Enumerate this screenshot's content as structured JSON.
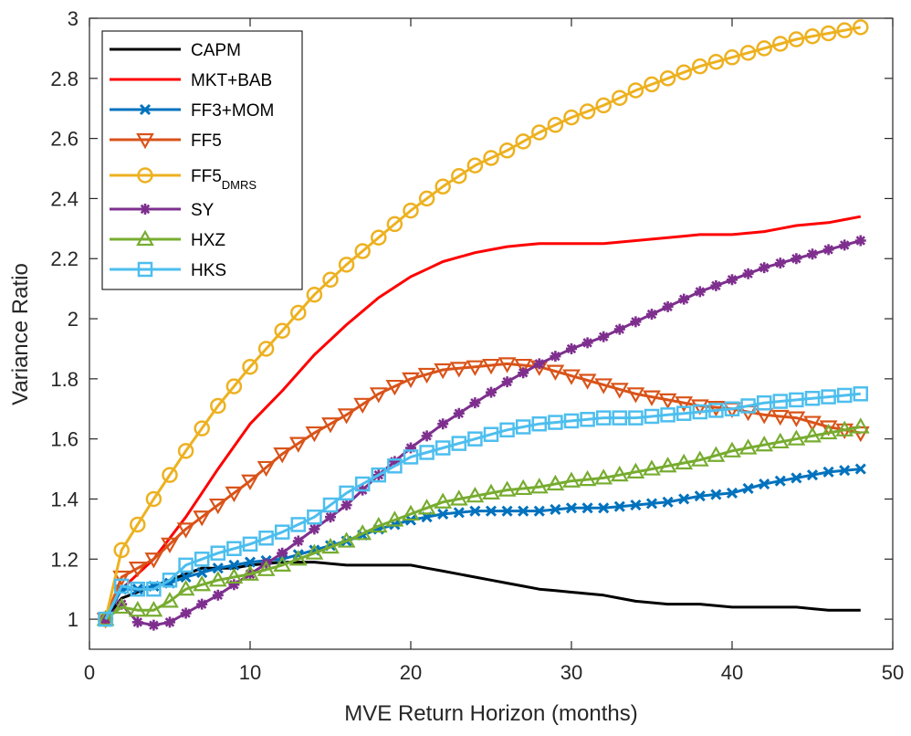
{
  "chart_data": {
    "type": "line",
    "xlabel": "MVE Return Horizon (months)",
    "ylabel": "Variance Ratio",
    "xlim": [
      0,
      50
    ],
    "ylim": [
      0.9,
      3.0
    ],
    "xticks": [
      0,
      10,
      20,
      30,
      40,
      50
    ],
    "yticks": [
      1,
      1.2,
      1.4,
      1.6,
      1.8,
      2,
      2.2,
      2.4,
      2.6,
      2.8,
      3
    ],
    "xtick_labels": [
      "0",
      "10",
      "20",
      "30",
      "40",
      "50"
    ],
    "ytick_labels": [
      "1",
      "1.2",
      "1.4",
      "1.6",
      "1.8",
      "2",
      "2.2",
      "2.4",
      "2.6",
      "2.8",
      "3"
    ],
    "grid": false,
    "legend_position": "top-left",
    "series": [
      {
        "name": "CAPM",
        "color": "#000000",
        "marker": "none",
        "points": [
          [
            1,
            1.0
          ],
          [
            2,
            1.07
          ],
          [
            3,
            1.09
          ],
          [
            4,
            1.11
          ],
          [
            5,
            1.13
          ],
          [
            6,
            1.15
          ],
          [
            7,
            1.17
          ],
          [
            8,
            1.17
          ],
          [
            9,
            1.17
          ],
          [
            10,
            1.18
          ],
          [
            12,
            1.19
          ],
          [
            14,
            1.19
          ],
          [
            16,
            1.18
          ],
          [
            18,
            1.18
          ],
          [
            20,
            1.18
          ],
          [
            21,
            1.17
          ],
          [
            22,
            1.16
          ],
          [
            24,
            1.14
          ],
          [
            26,
            1.12
          ],
          [
            28,
            1.1
          ],
          [
            30,
            1.09
          ],
          [
            32,
            1.08
          ],
          [
            34,
            1.06
          ],
          [
            36,
            1.05
          ],
          [
            38,
            1.05
          ],
          [
            40,
            1.04
          ],
          [
            42,
            1.04
          ],
          [
            44,
            1.04
          ],
          [
            46,
            1.03
          ],
          [
            48,
            1.03
          ]
        ]
      },
      {
        "name": "MKT+BAB",
        "color": "#ff0000",
        "marker": "none",
        "points": [
          [
            1,
            1.0
          ],
          [
            2,
            1.1
          ],
          [
            4,
            1.2
          ],
          [
            6,
            1.34
          ],
          [
            8,
            1.5
          ],
          [
            10,
            1.65
          ],
          [
            12,
            1.76
          ],
          [
            14,
            1.88
          ],
          [
            16,
            1.98
          ],
          [
            18,
            2.07
          ],
          [
            20,
            2.14
          ],
          [
            22,
            2.19
          ],
          [
            24,
            2.22
          ],
          [
            26,
            2.24
          ],
          [
            28,
            2.25
          ],
          [
            30,
            2.25
          ],
          [
            32,
            2.25
          ],
          [
            34,
            2.26
          ],
          [
            36,
            2.27
          ],
          [
            38,
            2.28
          ],
          [
            40,
            2.28
          ],
          [
            42,
            2.29
          ],
          [
            44,
            2.31
          ],
          [
            46,
            2.32
          ],
          [
            48,
            2.34
          ]
        ]
      },
      {
        "name": "FF3+MOM",
        "color": "#0072bd",
        "marker": "x",
        "points": [
          [
            1,
            1.0
          ],
          [
            2,
            1.1
          ],
          [
            3,
            1.1
          ],
          [
            4,
            1.11
          ],
          [
            5,
            1.12
          ],
          [
            6,
            1.14
          ],
          [
            8,
            1.17
          ],
          [
            10,
            1.19
          ],
          [
            12,
            1.2
          ],
          [
            14,
            1.23
          ],
          [
            16,
            1.26
          ],
          [
            18,
            1.3
          ],
          [
            20,
            1.33
          ],
          [
            22,
            1.35
          ],
          [
            24,
            1.36
          ],
          [
            26,
            1.36
          ],
          [
            28,
            1.36
          ],
          [
            30,
            1.37
          ],
          [
            32,
            1.37
          ],
          [
            34,
            1.38
          ],
          [
            36,
            1.39
          ],
          [
            38,
            1.41
          ],
          [
            40,
            1.42
          ],
          [
            42,
            1.45
          ],
          [
            44,
            1.47
          ],
          [
            46,
            1.49
          ],
          [
            48,
            1.5
          ]
        ]
      },
      {
        "name": "FF5",
        "color": "#d95319",
        "marker": "triangle-down",
        "points": [
          [
            1,
            1.0
          ],
          [
            2,
            1.14
          ],
          [
            4,
            1.2
          ],
          [
            6,
            1.3
          ],
          [
            8,
            1.38
          ],
          [
            10,
            1.46
          ],
          [
            12,
            1.55
          ],
          [
            14,
            1.62
          ],
          [
            16,
            1.68
          ],
          [
            18,
            1.75
          ],
          [
            20,
            1.8
          ],
          [
            22,
            1.83
          ],
          [
            24,
            1.84
          ],
          [
            26,
            1.85
          ],
          [
            28,
            1.84
          ],
          [
            30,
            1.81
          ],
          [
            32,
            1.78
          ],
          [
            34,
            1.75
          ],
          [
            36,
            1.73
          ],
          [
            38,
            1.71
          ],
          [
            40,
            1.7
          ],
          [
            42,
            1.68
          ],
          [
            44,
            1.67
          ],
          [
            46,
            1.64
          ],
          [
            48,
            1.62
          ]
        ]
      },
      {
        "name": "FF5DMRS",
        "label_main": "FF5",
        "label_sub": "DMRS",
        "color": "#edb120",
        "marker": "circle",
        "points": [
          [
            1,
            1.0
          ],
          [
            2,
            1.23
          ],
          [
            4,
            1.4
          ],
          [
            6,
            1.56
          ],
          [
            8,
            1.71
          ],
          [
            10,
            1.84
          ],
          [
            12,
            1.96
          ],
          [
            14,
            2.08
          ],
          [
            16,
            2.18
          ],
          [
            18,
            2.27
          ],
          [
            20,
            2.36
          ],
          [
            22,
            2.44
          ],
          [
            24,
            2.51
          ],
          [
            26,
            2.56
          ],
          [
            28,
            2.62
          ],
          [
            30,
            2.67
          ],
          [
            32,
            2.71
          ],
          [
            34,
            2.76
          ],
          [
            36,
            2.8
          ],
          [
            38,
            2.84
          ],
          [
            40,
            2.87
          ],
          [
            42,
            2.9
          ],
          [
            44,
            2.93
          ],
          [
            46,
            2.95
          ],
          [
            48,
            2.97
          ]
        ]
      },
      {
        "name": "SY",
        "color": "#7e2f8e",
        "marker": "asterisk",
        "points": [
          [
            1,
            1.0
          ],
          [
            2,
            1.05
          ],
          [
            3,
            0.99
          ],
          [
            4,
            0.98
          ],
          [
            5,
            0.99
          ],
          [
            6,
            1.02
          ],
          [
            8,
            1.08
          ],
          [
            10,
            1.15
          ],
          [
            12,
            1.22
          ],
          [
            14,
            1.3
          ],
          [
            16,
            1.38
          ],
          [
            18,
            1.48
          ],
          [
            20,
            1.57
          ],
          [
            22,
            1.65
          ],
          [
            24,
            1.72
          ],
          [
            26,
            1.79
          ],
          [
            28,
            1.85
          ],
          [
            30,
            1.9
          ],
          [
            32,
            1.94
          ],
          [
            34,
            1.99
          ],
          [
            36,
            2.04
          ],
          [
            38,
            2.09
          ],
          [
            40,
            2.13
          ],
          [
            42,
            2.17
          ],
          [
            44,
            2.2
          ],
          [
            46,
            2.23
          ],
          [
            48,
            2.26
          ]
        ]
      },
      {
        "name": "HXZ",
        "color": "#77ac30",
        "marker": "triangle-up",
        "points": [
          [
            1,
            1.0
          ],
          [
            2,
            1.04
          ],
          [
            3,
            1.03
          ],
          [
            4,
            1.03
          ],
          [
            5,
            1.06
          ],
          [
            6,
            1.1
          ],
          [
            8,
            1.13
          ],
          [
            10,
            1.15
          ],
          [
            12,
            1.18
          ],
          [
            14,
            1.22
          ],
          [
            16,
            1.26
          ],
          [
            18,
            1.31
          ],
          [
            20,
            1.35
          ],
          [
            22,
            1.39
          ],
          [
            24,
            1.41
          ],
          [
            26,
            1.43
          ],
          [
            28,
            1.44
          ],
          [
            30,
            1.46
          ],
          [
            32,
            1.47
          ],
          [
            34,
            1.49
          ],
          [
            36,
            1.51
          ],
          [
            38,
            1.53
          ],
          [
            40,
            1.56
          ],
          [
            42,
            1.58
          ],
          [
            44,
            1.6
          ],
          [
            46,
            1.62
          ],
          [
            48,
            1.64
          ]
        ]
      },
      {
        "name": "HKS",
        "color": "#4dbeee",
        "marker": "square",
        "points": [
          [
            1,
            1.0
          ],
          [
            2,
            1.11
          ],
          [
            3,
            1.1
          ],
          [
            4,
            1.1
          ],
          [
            5,
            1.13
          ],
          [
            6,
            1.18
          ],
          [
            8,
            1.22
          ],
          [
            10,
            1.25
          ],
          [
            12,
            1.29
          ],
          [
            14,
            1.34
          ],
          [
            16,
            1.42
          ],
          [
            18,
            1.48
          ],
          [
            20,
            1.54
          ],
          [
            22,
            1.57
          ],
          [
            24,
            1.6
          ],
          [
            26,
            1.63
          ],
          [
            28,
            1.65
          ],
          [
            30,
            1.66
          ],
          [
            32,
            1.67
          ],
          [
            34,
            1.67
          ],
          [
            36,
            1.68
          ],
          [
            38,
            1.69
          ],
          [
            40,
            1.7
          ],
          [
            42,
            1.72
          ],
          [
            44,
            1.73
          ],
          [
            46,
            1.74
          ],
          [
            48,
            1.75
          ]
        ]
      }
    ]
  }
}
